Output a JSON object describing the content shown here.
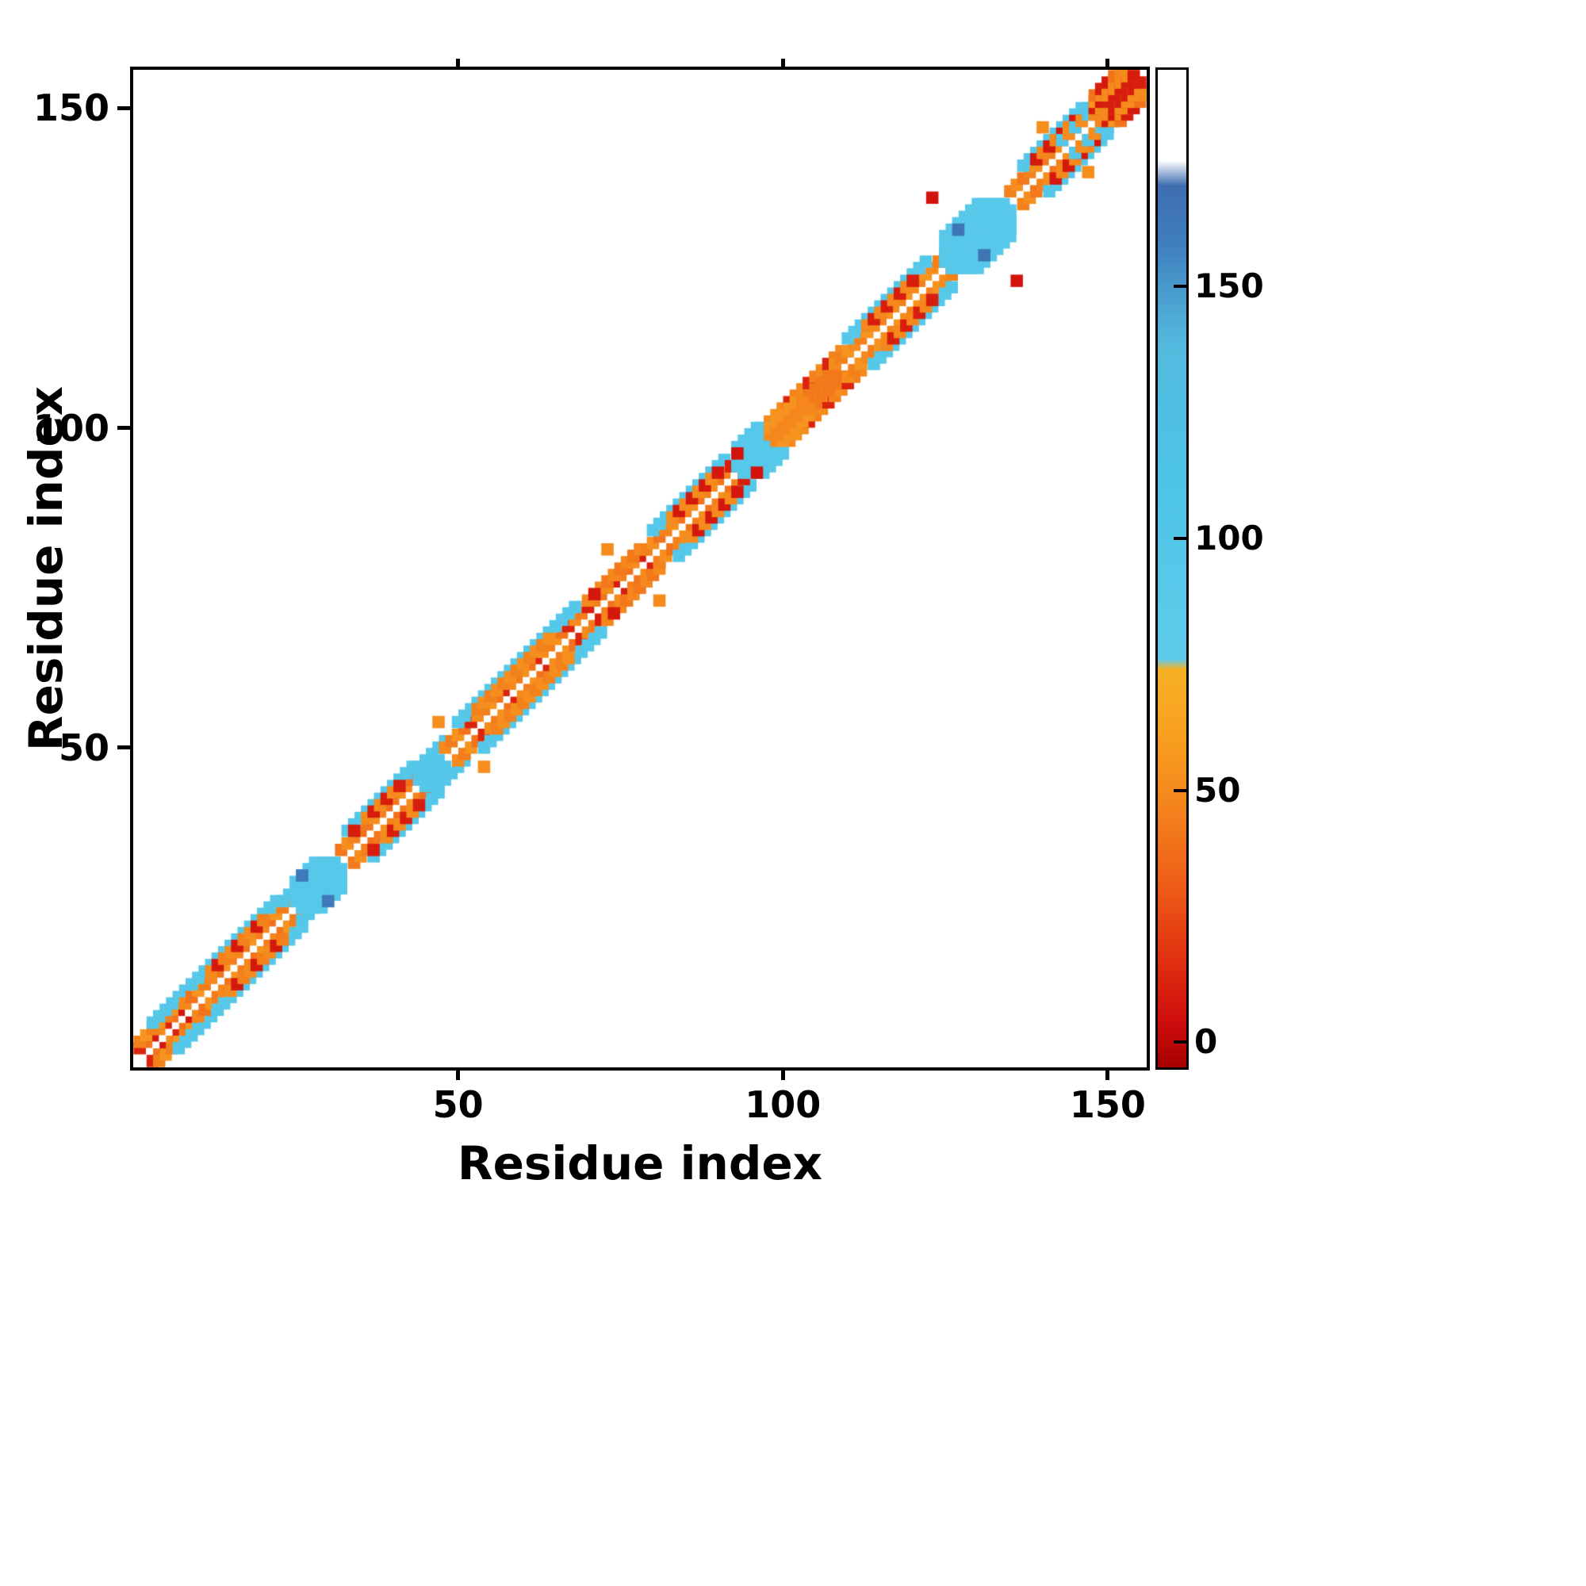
{
  "chart_data": {
    "type": "heatmap",
    "title": "",
    "xlabel": "Residue index",
    "ylabel": "Residue index",
    "xlim": [
      0,
      156
    ],
    "ylim": [
      0,
      156
    ],
    "xticks": [
      50,
      100,
      150
    ],
    "yticks": [
      50,
      100,
      150
    ],
    "grid": false,
    "legend": "colorbar-right",
    "marker_size_res": 1.9,
    "colorbar": {
      "ticks": [
        0,
        50,
        100,
        150
      ],
      "vmin": -5,
      "vmax": 193,
      "stops": [
        [
          -5,
          "#a50000"
        ],
        [
          4,
          "#cf0d0d"
        ],
        [
          18,
          "#e23510"
        ],
        [
          32,
          "#ee5f18"
        ],
        [
          48,
          "#f5871d"
        ],
        [
          62,
          "#f8a120"
        ],
        [
          74,
          "#f7b124"
        ],
        [
          76,
          "#5fcbea"
        ],
        [
          112,
          "#4cc4e8"
        ],
        [
          138,
          "#53bade"
        ],
        [
          148,
          "#4a9fd0"
        ],
        [
          158,
          "#3f7fbd"
        ],
        [
          170,
          "#3f6eb0"
        ],
        [
          175,
          "#ffffff"
        ],
        [
          193,
          "#ffffff"
        ]
      ]
    },
    "bands": [
      {
        "i0": 1,
        "i1": 8,
        "offset": 2,
        "values": [
          12,
          40,
          8,
          50
        ]
      },
      {
        "i0": 1,
        "i1": 7,
        "offset": 3,
        "values": [
          45,
          55
        ]
      },
      {
        "i0": 3,
        "i1": 8,
        "offset": 4,
        "values": [
          95
        ]
      },
      {
        "i0": 8,
        "i1": 24,
        "offset": 2,
        "values": [
          48,
          40,
          55,
          44
        ]
      },
      {
        "i0": 9,
        "i1": 22,
        "offset": 4,
        "values": [
          95,
          92
        ]
      },
      {
        "i0": 12,
        "i1": 20,
        "offset": 3,
        "values": [
          50,
          8,
          45
        ]
      },
      {
        "i0": 23,
        "i1": 26,
        "offset": 3,
        "values": [
          95
        ]
      },
      {
        "i0": 32,
        "i1": 44,
        "offset": 2,
        "values": [
          42,
          52,
          46,
          38
        ]
      },
      {
        "i0": 33,
        "i1": 43,
        "offset": 4,
        "values": [
          95
        ]
      },
      {
        "i0": 36,
        "i1": 41,
        "offset": 3,
        "values": [
          50,
          10
        ]
      },
      {
        "i0": 44,
        "i1": 48,
        "offset": 3,
        "values": [
          95
        ]
      },
      {
        "i0": 48,
        "i1": 70,
        "offset": 2,
        "values": [
          50,
          44,
          54,
          40,
          12
        ]
      },
      {
        "i0": 50,
        "i1": 68,
        "offset": 4,
        "values": [
          95,
          92,
          95
        ]
      },
      {
        "i0": 53,
        "i1": 64,
        "offset": 3,
        "values": [
          46,
          52
        ]
      },
      {
        "i0": 70,
        "i1": 79,
        "offset": 2,
        "values": [
          10,
          45,
          40,
          50
        ]
      },
      {
        "i0": 70,
        "i1": 78,
        "offset": 3,
        "values": [
          48,
          42
        ]
      },
      {
        "i0": 79,
        "i1": 93,
        "offset": 2,
        "values": [
          46,
          52,
          40
        ]
      },
      {
        "i0": 80,
        "i1": 91,
        "offset": 4,
        "values": [
          95
        ]
      },
      {
        "i0": 83,
        "i1": 90,
        "offset": 3,
        "values": [
          50,
          8
        ]
      },
      {
        "i0": 92,
        "i1": 95,
        "offset": 2,
        "values": [
          10,
          45
        ]
      },
      {
        "i0": 98,
        "i1": 104,
        "offset": 3,
        "values": [
          48,
          55
        ]
      },
      {
        "i0": 100,
        "i1": 110,
        "offset": 2,
        "values": [
          44,
          50,
          40,
          55
        ]
      },
      {
        "i0": 100,
        "i1": 109,
        "offset": 3,
        "values": [
          50,
          12,
          46
        ]
      },
      {
        "i0": 101,
        "i1": 108,
        "offset": 1,
        "values": [
          42
        ]
      },
      {
        "i0": 108,
        "i1": 124,
        "offset": 2,
        "values": [
          50,
          45,
          55
        ]
      },
      {
        "i0": 110,
        "i1": 122,
        "offset": 4,
        "values": [
          95,
          92
        ]
      },
      {
        "i0": 113,
        "i1": 120,
        "offset": 3,
        "values": [
          48,
          10
        ]
      },
      {
        "i0": 124,
        "i1": 128,
        "offset": 2,
        "values": [
          46
        ]
      },
      {
        "i0": 135,
        "i1": 147,
        "offset": 2,
        "values": [
          46,
          52,
          42
        ]
      },
      {
        "i0": 137,
        "i1": 146,
        "offset": 4,
        "values": [
          95
        ]
      },
      {
        "i0": 139,
        "i1": 145,
        "offset": 3,
        "values": [
          8,
          48
        ]
      },
      {
        "i0": 143,
        "i1": 149,
        "offset": 2,
        "values": [
          95,
          50
        ]
      },
      {
        "i0": 147,
        "i1": 152,
        "offset": 3,
        "values": [
          95
        ]
      }
    ],
    "clusters": [
      {
        "i0": 25,
        "i1": 32,
        "maxoff": 4,
        "values": [
          93
        ]
      },
      {
        "i0": 44,
        "i1": 48,
        "maxoff": 2,
        "values": [
          95
        ]
      },
      {
        "i0": 93,
        "i1": 100,
        "maxoff": 4,
        "values": [
          93
        ]
      },
      {
        "i0": 98,
        "i1": 104,
        "maxoff": 2,
        "values": [
          48,
          55
        ]
      },
      {
        "i0": 125,
        "i1": 135,
        "maxoff": 5,
        "values": [
          92
        ]
      },
      {
        "i0": 148,
        "i1": 155,
        "maxoff": 4,
        "values": [
          48,
          10,
          55,
          40,
          50,
          8
        ]
      },
      {
        "i0": 150,
        "i1": 155,
        "maxoff": 2,
        "values": [
          10,
          50
        ]
      }
    ],
    "points": [
      [
        47,
        54,
        52
      ],
      [
        54,
        47,
        52
      ],
      [
        73,
        81,
        50
      ],
      [
        81,
        73,
        50
      ],
      [
        71,
        74,
        8
      ],
      [
        74,
        71,
        8
      ],
      [
        34,
        37,
        10
      ],
      [
        37,
        34,
        10
      ],
      [
        93,
        96,
        6
      ],
      [
        96,
        93,
        6
      ],
      [
        123,
        136,
        6
      ],
      [
        136,
        123,
        6
      ],
      [
        127,
        131,
        165
      ],
      [
        131,
        127,
        165
      ],
      [
        26,
        30,
        162
      ],
      [
        30,
        26,
        162
      ],
      [
        140,
        147,
        52
      ],
      [
        147,
        140,
        52
      ]
    ]
  }
}
